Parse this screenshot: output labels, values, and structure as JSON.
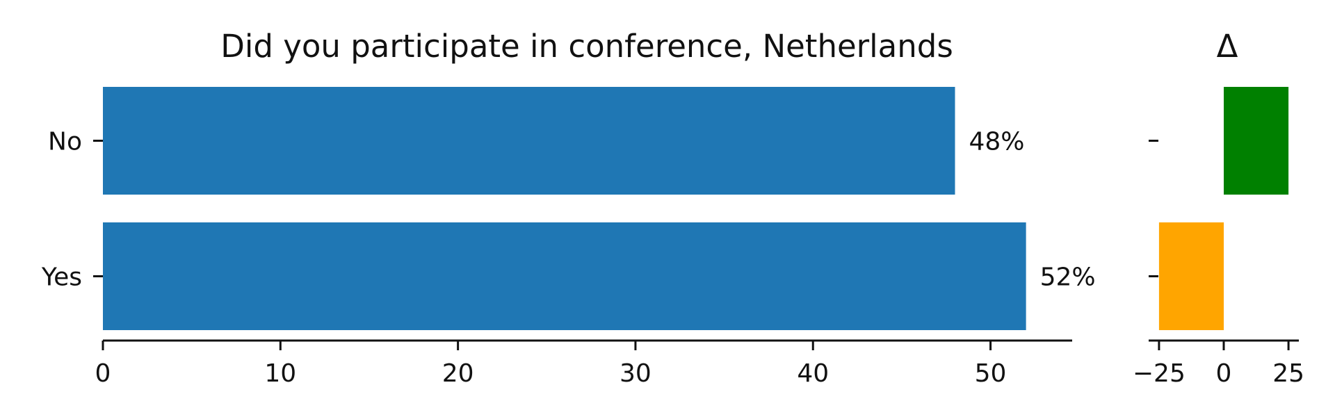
{
  "chart_data": [
    {
      "type": "bar",
      "orientation": "horizontal",
      "title": "Did you participate in conference, Netherlands",
      "xlabel": "",
      "ylabel": "",
      "categories": [
        "No",
        "Yes"
      ],
      "values": [
        48,
        52
      ],
      "value_labels": [
        "48%",
        "52%"
      ],
      "xlim": [
        0,
        54.6
      ],
      "x_ticks": [
        0,
        10,
        20,
        30,
        40,
        50
      ],
      "x_tick_labels": [
        "0",
        "10",
        "20",
        "30",
        "40",
        "50"
      ],
      "bar_color": "#1f77b4",
      "grid": false
    },
    {
      "type": "bar",
      "orientation": "horizontal",
      "title": "Δ",
      "xlabel": "",
      "ylabel": "",
      "categories": [
        "No",
        "Yes"
      ],
      "values": [
        25,
        -25
      ],
      "colors": [
        "#008000",
        "#ffa500"
      ],
      "xlim": [
        -29,
        29
      ],
      "x_ticks": [
        -25,
        0,
        25
      ],
      "x_tick_labels": [
        "−25",
        "0",
        "25"
      ],
      "grid": false
    }
  ]
}
